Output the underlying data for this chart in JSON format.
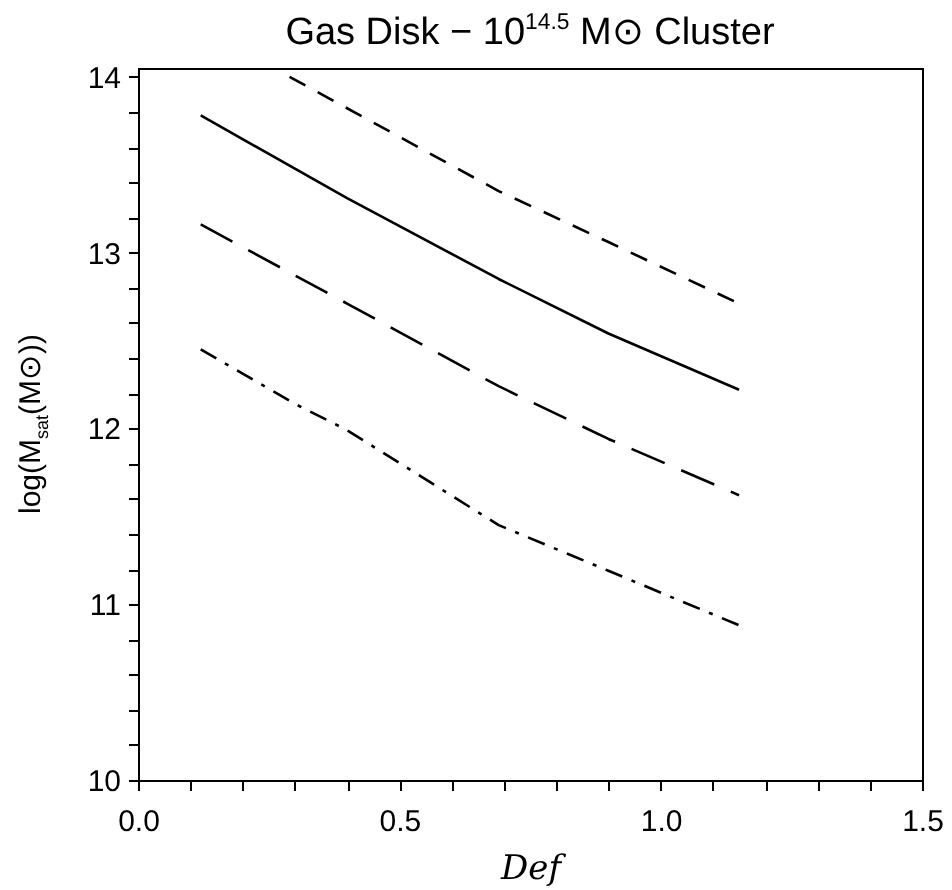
{
  "chart_data": {
    "type": "line",
    "title": "Gas Disk − 10$^{14.5}$ M⊙ Cluster",
    "xlabel": "Def",
    "ylabel": "log(M$_{sat}$(M⊙))",
    "xlim": [
      0,
      1.5
    ],
    "ylim": [
      10,
      14.05
    ],
    "xticks": [
      {
        "value": 0,
        "label": "0.0"
      },
      {
        "value": 0.1,
        "label": null
      },
      {
        "value": 0.2,
        "label": null
      },
      {
        "value": 0.3,
        "label": null
      },
      {
        "value": 0.4,
        "label": null
      },
      {
        "value": 0.5,
        "label": "0.5"
      },
      {
        "value": 0.6,
        "label": null
      },
      {
        "value": 0.7,
        "label": null
      },
      {
        "value": 0.8,
        "label": null
      },
      {
        "value": 0.9,
        "label": null
      },
      {
        "value": 1,
        "label": "1.0"
      },
      {
        "value": 1.1,
        "label": null
      },
      {
        "value": 1.2,
        "label": null
      },
      {
        "value": 1.3,
        "label": null
      },
      {
        "value": 1.4,
        "label": null
      },
      {
        "value": 1.5,
        "label": "1.5"
      }
    ],
    "yticks": [
      10,
      {
        "value": 10.2,
        "label": null
      },
      {
        "value": 10.4,
        "label": null
      },
      {
        "value": 10.6,
        "label": null
      },
      {
        "value": 10.8,
        "label": null
      },
      11,
      {
        "value": 11.2,
        "label": null
      },
      {
        "value": 11.4,
        "label": null
      },
      {
        "value": 11.6,
        "label": null
      },
      {
        "value": 11.8,
        "label": null
      },
      12,
      {
        "value": 12.2,
        "label": null
      },
      {
        "value": 12.4,
        "label": null
      },
      {
        "value": 12.6,
        "label": null
      },
      {
        "value": 12.8,
        "label": null
      },
      13,
      {
        "value": 13.2,
        "label": null
      },
      {
        "value": 13.4,
        "label": null
      },
      {
        "value": 13.6,
        "label": null
      },
      {
        "value": 13.8,
        "label": null
      },
      14
    ],
    "grid": false,
    "marker": "none",
    "series": [
      {
        "color": "#000000",
        "line_style": "dashed",
        "x": [
          0.29,
          0.69,
          0.9,
          1.15
        ],
        "values": [
          14.0,
          13.35,
          13.06,
          12.71
        ]
      },
      {
        "color": "#000000",
        "line_style": "solid",
        "x": [
          0.12,
          0.4,
          0.69,
          0.9,
          1.15
        ],
        "values": [
          13.78,
          13.31,
          12.85,
          12.54,
          12.22
        ]
      },
      {
        "color": "#000000",
        "line_style": "longdash",
        "x": [
          0.12,
          0.4,
          0.69,
          0.9,
          1.15
        ],
        "values": [
          13.16,
          12.71,
          12.24,
          11.94,
          11.62
        ]
      },
      {
        "color": "#000000",
        "line_style": "dashdot",
        "x": [
          0.12,
          0.3,
          0.4,
          0.69,
          0.9,
          1.15
        ],
        "values": [
          12.45,
          12.14,
          11.99,
          11.45,
          11.19,
          10.88
        ]
      }
    ]
  }
}
